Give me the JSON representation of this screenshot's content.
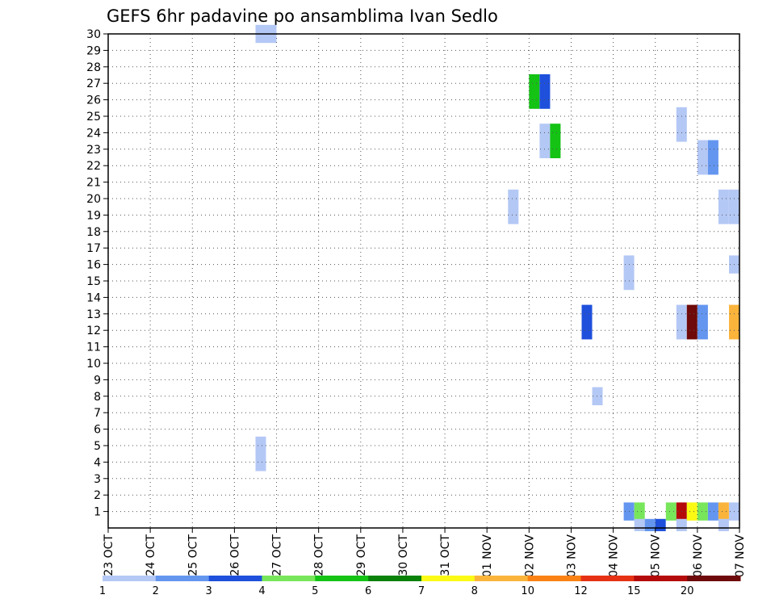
{
  "chart_data": {
    "type": "heatmap",
    "title": "GEFS 6hr padavine po ansamblima Ivan Sedlo",
    "xlabel": "",
    "ylabel": "",
    "grid": true,
    "x_ticks": [
      "23 OCT",
      "24 OCT",
      "25 OCT",
      "26 OCT",
      "27 OCT",
      "28 OCT",
      "29 OCT",
      "30 OCT",
      "31 OCT",
      "01 NOV",
      "02 NOV",
      "03 NOV",
      "04 NOV",
      "05 NOV",
      "06 NOV",
      "07 NOV"
    ],
    "x_range": [
      "23 OCT 00Z",
      "07 NOV 00Z"
    ],
    "time_step_hours": 6,
    "y_ticks": [
      1,
      2,
      3,
      4,
      5,
      6,
      7,
      8,
      9,
      10,
      11,
      12,
      13,
      14,
      15,
      16,
      17,
      18,
      19,
      20,
      21,
      22,
      23,
      24,
      25,
      26,
      27,
      28,
      29,
      30
    ],
    "y_range": [
      0,
      30
    ],
    "colorbar": {
      "labels": [
        "1",
        "2",
        "3",
        "4",
        "5",
        "6",
        "7",
        "8",
        "10",
        "12",
        "15",
        "20"
      ],
      "colors": [
        "#b4c8f5",
        "#6496f0",
        "#1e50dc",
        "#78e65a",
        "#14c314",
        "#0a820a",
        "#fafa14",
        "#fab43c",
        "#fa8214",
        "#e63214",
        "#b40a0a",
        "#6e0a0a"
      ]
    },
    "cells": [
      {
        "time": "26 OCT 12Z",
        "members": [
          30
        ],
        "value": 1
      },
      {
        "time": "26 OCT 18Z",
        "members": [
          30
        ],
        "value": 1
      },
      {
        "time": "26 OCT 12Z",
        "members": [
          4,
          5
        ],
        "value": 1
      },
      {
        "time": "01 NOV 12Z",
        "members": [
          19,
          20
        ],
        "value": 1
      },
      {
        "time": "02 NOV 00Z",
        "members": [
          26,
          27
        ],
        "value": 5
      },
      {
        "time": "02 NOV 06Z",
        "members": [
          26,
          27
        ],
        "value": 3
      },
      {
        "time": "02 NOV 06Z",
        "members": [
          23,
          24
        ],
        "value": 1
      },
      {
        "time": "02 NOV 12Z",
        "members": [
          23,
          24
        ],
        "value": 5
      },
      {
        "time": "03 NOV 06Z",
        "members": [
          12,
          13
        ],
        "value": 3
      },
      {
        "time": "03 NOV 12Z",
        "members": [
          8
        ],
        "value": 1
      },
      {
        "time": "04 NOV 06Z",
        "members": [
          15,
          16
        ],
        "value": 1
      },
      {
        "time": "04 NOV 06Z",
        "members": [
          1
        ],
        "value": 2
      },
      {
        "time": "04 NOV 12Z",
        "members": [
          1
        ],
        "value": 4
      },
      {
        "time": "04 NOV 12Z",
        "members": [
          0
        ],
        "value": 1
      },
      {
        "time": "04 NOV 18Z",
        "members": [
          0
        ],
        "value": 2
      },
      {
        "time": "05 NOV 00Z",
        "members": [
          0
        ],
        "value": 3
      },
      {
        "time": "05 NOV 12Z",
        "members": [
          24,
          25
        ],
        "value": 1
      },
      {
        "time": "05 NOV 06Z",
        "members": [
          1
        ],
        "value": 4
      },
      {
        "time": "05 NOV 12Z",
        "members": [
          1
        ],
        "value": 15
      },
      {
        "time": "05 NOV 12Z",
        "members": [
          0
        ],
        "value": 1
      },
      {
        "time": "05 NOV 12Z",
        "members": [
          12,
          13
        ],
        "value": 1
      },
      {
        "time": "05 NOV 18Z",
        "members": [
          12,
          13
        ],
        "value": 20
      },
      {
        "time": "05 NOV 18Z",
        "members": [
          1
        ],
        "value": 7
      },
      {
        "time": "06 NOV 00Z",
        "members": [
          12,
          13
        ],
        "value": 2
      },
      {
        "time": "06 NOV 00Z",
        "members": [
          1
        ],
        "value": 4
      },
      {
        "time": "06 NOV 00Z",
        "members": [
          22,
          23
        ],
        "value": 1
      },
      {
        "time": "06 NOV 06Z",
        "members": [
          22,
          23
        ],
        "value": 2
      },
      {
        "time": "06 NOV 06Z",
        "members": [
          1
        ],
        "value": 2
      },
      {
        "time": "06 NOV 12Z",
        "members": [
          1
        ],
        "value": 8
      },
      {
        "time": "06 NOV 12Z",
        "members": [
          0
        ],
        "value": 1
      },
      {
        "time": "06 NOV 12Z",
        "members": [
          19,
          20
        ],
        "value": 1
      },
      {
        "time": "06 NOV 18Z",
        "members": [
          19,
          20
        ],
        "value": 1
      },
      {
        "time": "06 NOV 18Z",
        "members": [
          16
        ],
        "value": 1
      },
      {
        "time": "06 NOV 18Z",
        "members": [
          12,
          13
        ],
        "value": 8
      },
      {
        "time": "06 NOV 18Z",
        "members": [
          1
        ],
        "value": 1
      }
    ]
  }
}
